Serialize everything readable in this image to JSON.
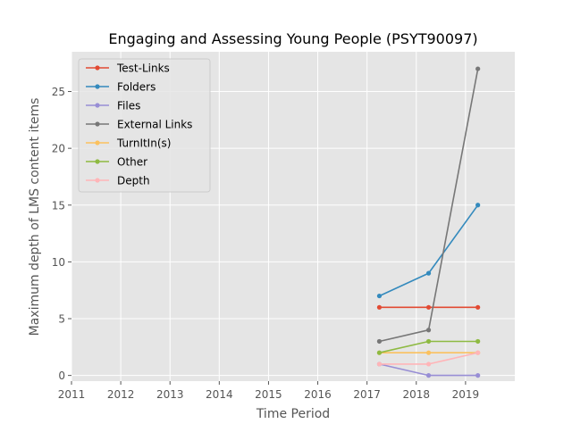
{
  "chart_data": {
    "type": "line",
    "title": "Engaging and Assessing Young People (PSYT90097)",
    "xlabel": "Time Period",
    "ylabel": "Maximum depth of LMS content items",
    "xlim": [
      2011,
      2020
    ],
    "ylim": [
      -0.5,
      28.5
    ],
    "x_ticks": [
      2011,
      2012,
      2013,
      2014,
      2015,
      2016,
      2017,
      2018,
      2019
    ],
    "y_ticks": [
      0,
      5,
      10,
      15,
      20,
      25
    ],
    "x": [
      2017.25,
      2018.25,
      2019.25
    ],
    "grid": true,
    "legend_position": "top-left",
    "background": "#e5e5e5",
    "series": [
      {
        "name": "Test-Links",
        "color": "#e24a33",
        "values": [
          6,
          6,
          6
        ]
      },
      {
        "name": "Folders",
        "color": "#348abd",
        "values": [
          7,
          9,
          15
        ]
      },
      {
        "name": "Files",
        "color": "#988ed5",
        "values": [
          1,
          0,
          0
        ]
      },
      {
        "name": "External Links",
        "color": "#777777",
        "values": [
          3,
          4,
          27
        ]
      },
      {
        "name": "TurnItIn(s)",
        "color": "#fbc15e",
        "values": [
          2,
          2,
          2
        ]
      },
      {
        "name": "Other",
        "color": "#8eba42",
        "values": [
          2,
          3,
          3
        ]
      },
      {
        "name": "Depth",
        "color": "#ffb5b8",
        "values": [
          1,
          1,
          2
        ]
      }
    ]
  }
}
